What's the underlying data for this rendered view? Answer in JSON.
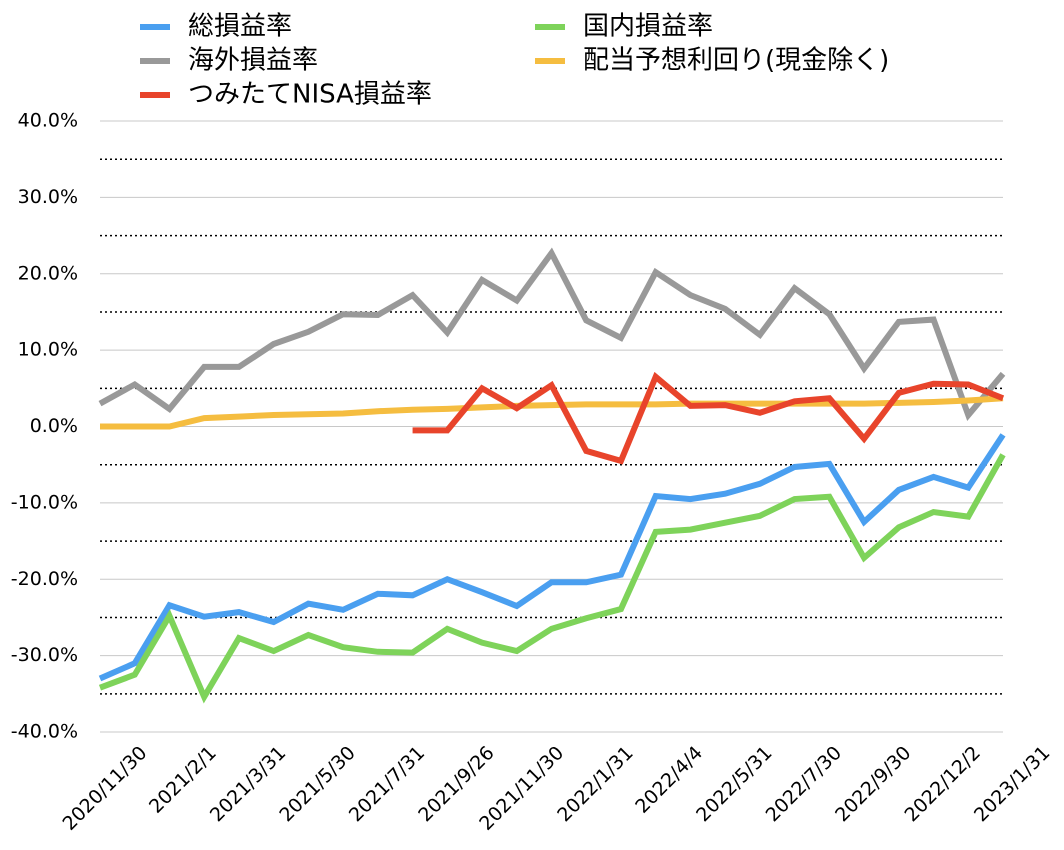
{
  "chart_data": {
    "type": "line",
    "categories": [
      "2020/11/30",
      null,
      "2021/2/1",
      null,
      "2021/3/31",
      null,
      "2021/5/30",
      null,
      "2021/7/31",
      null,
      "2021/9/26",
      null,
      "2021/11/30",
      null,
      "2022/1/31",
      null,
      "2022/4/4",
      null,
      "2022/5/31",
      null,
      "2022/7/30",
      null,
      "2022/9/30",
      null,
      "2022/12/2",
      null,
      "2023/1/31"
    ],
    "series": [
      {
        "name": "総損益率",
        "color": "#4a9ff0",
        "values": [
          -33.0,
          -31.0,
          -23.4,
          -24.9,
          -24.3,
          -25.6,
          -23.2,
          -24.0,
          -21.9,
          -22.1,
          -20.0,
          -21.7,
          -23.5,
          -20.4,
          -20.4,
          -19.4,
          -9.1,
          -9.5,
          -8.8,
          -7.5,
          -5.3,
          -4.9,
          -12.5,
          -8.3,
          -6.6,
          -8.0,
          -1.1
        ]
      },
      {
        "name": "国内損益率",
        "color": "#7ed35a",
        "values": [
          -34.2,
          -32.5,
          -24.8,
          -35.4,
          -27.7,
          -29.4,
          -27.3,
          -28.9,
          -29.5,
          -29.6,
          -26.5,
          -28.3,
          -29.4,
          -26.5,
          -25.1,
          -23.9,
          -13.8,
          -13.5,
          -12.6,
          -11.7,
          -9.5,
          -9.2,
          -17.2,
          -13.2,
          -11.2,
          -11.8,
          -3.7
        ]
      },
      {
        "name": "海外損益率",
        "color": "#999999",
        "values": [
          3.0,
          5.5,
          2.3,
          7.8,
          7.8,
          10.8,
          12.4,
          14.7,
          14.6,
          17.2,
          12.3,
          19.2,
          16.5,
          22.7,
          13.9,
          11.6,
          20.2,
          17.2,
          15.4,
          12.0,
          18.1,
          14.7,
          7.6,
          13.7,
          14.0,
          1.5,
          6.9
        ]
      },
      {
        "name": "配当予想利回り(現金除く)",
        "color": "#f5bd40",
        "values": [
          0,
          0,
          0,
          1.1,
          1.3,
          1.5,
          1.6,
          1.7,
          2.0,
          2.2,
          2.3,
          2.5,
          2.7,
          2.8,
          2.9,
          2.9,
          2.9,
          3.0,
          3.0,
          3.0,
          3.0,
          3.0,
          3.0,
          3.1,
          3.2,
          3.4,
          3.7
        ]
      },
      {
        "name": "つみたてNISA損益率",
        "color": "#e8442b",
        "values": [
          null,
          null,
          null,
          null,
          null,
          null,
          null,
          null,
          null,
          -0.5,
          -0.5,
          5.0,
          2.4,
          5.4,
          -3.2,
          -4.5,
          6.5,
          2.7,
          2.8,
          1.8,
          3.3,
          3.7,
          -1.6,
          4.4,
          5.6,
          5.5,
          3.7
        ]
      }
    ],
    "ylim": [
      -40,
      40
    ],
    "yticks": [
      {
        "value": -40,
        "label": "-40.0%"
      },
      {
        "value": -30,
        "label": "-30.0%"
      },
      {
        "value": -20,
        "label": "-20.0%"
      },
      {
        "value": -10,
        "label": "-10.0%"
      },
      {
        "value": 0,
        "label": "0.0%"
      },
      {
        "value": 10,
        "label": "10.0%"
      },
      {
        "value": 20,
        "label": "20.0%"
      },
      {
        "value": 30,
        "label": "30.0%"
      },
      {
        "value": 40,
        "label": "40.0%"
      }
    ],
    "minor_yticks": [
      -35,
      -25,
      -15,
      -5,
      5,
      15,
      25,
      35
    ],
    "grid": true
  }
}
